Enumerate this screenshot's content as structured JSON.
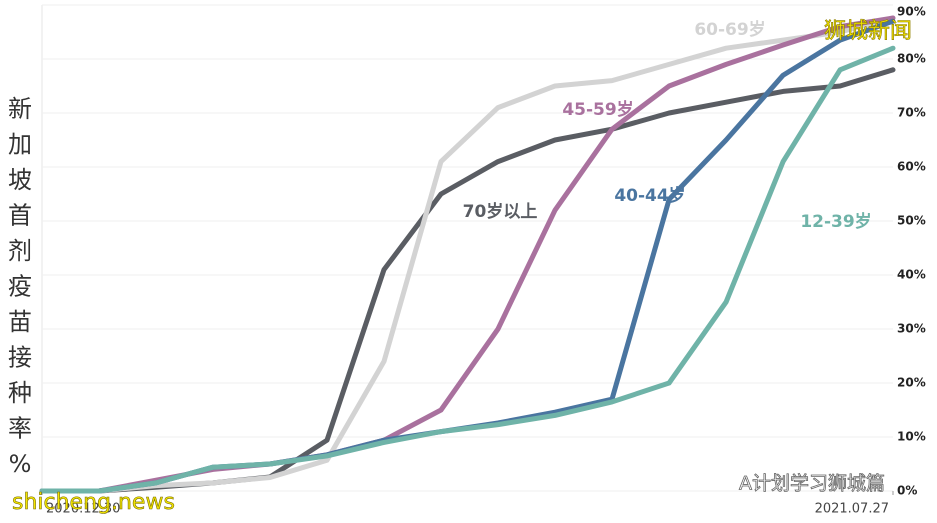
{
  "chart_data": {
    "type": "line",
    "y_label": "新加坡首剂疫苗接种率%",
    "x": [
      "2020.12.30",
      "2021.01.13",
      "2021.01.27",
      "2021.02.10",
      "2021.02.24",
      "2021.03.10",
      "2021.03.24",
      "2021.04.07",
      "2021.04.21",
      "2021.05.05",
      "2021.05.19",
      "2021.06.02",
      "2021.06.16",
      "2021.06.30",
      "2021.07.14",
      "2021.07.27"
    ],
    "xlim": [
      "2020.12.30",
      "2021.07.27"
    ],
    "xticks": [
      "2020.12.30",
      "2021.07.27"
    ],
    "ylim": [
      0,
      90
    ],
    "yticks": [
      {
        "value": 0,
        "label": "0%"
      },
      {
        "value": 10,
        "label": "10%"
      },
      {
        "value": 20,
        "label": "20%"
      },
      {
        "value": 30,
        "label": "30%"
      },
      {
        "value": 40,
        "label": "40%"
      },
      {
        "value": 50,
        "label": "50%"
      },
      {
        "value": 60,
        "label": "60%"
      },
      {
        "value": 70,
        "label": "70%"
      },
      {
        "value": 80,
        "label": "80%"
      },
      {
        "value": 90,
        "label": "90%"
      }
    ],
    "grid": true,
    "series": [
      {
        "name": "70岁以上",
        "color": "#5a5d63",
        "values": [
          0,
          0,
          0.7,
          1.5,
          2.6,
          9.4,
          41,
          55,
          61,
          65,
          67,
          70,
          72,
          74,
          75,
          78
        ]
      },
      {
        "name": "60-69岁",
        "color": "#d3d3d3",
        "values": [
          0,
          0,
          1,
          1.5,
          2.5,
          5.7,
          24,
          61,
          71,
          75,
          76,
          79,
          82,
          83.5,
          85,
          87.6
        ]
      },
      {
        "name": "45-59岁",
        "color": "#a9719e",
        "values": [
          0,
          0,
          2,
          4,
          5,
          6.7,
          9.4,
          15,
          30,
          52,
          67,
          75,
          79,
          82.6,
          86,
          87.6
        ]
      },
      {
        "name": "40-44岁",
        "color": "#4a75a0",
        "values": [
          0,
          0,
          1.5,
          4.4,
          5,
          6.7,
          9.4,
          11,
          12.6,
          14.6,
          17,
          54,
          65,
          77,
          83.5,
          87
        ]
      },
      {
        "name": "12-39岁",
        "color": "#6fb3a8",
        "values": [
          0,
          0,
          1.5,
          4.4,
          5,
          6.5,
          9,
          11,
          12.3,
          14,
          16.5,
          20,
          35,
          61,
          78,
          82
        ]
      }
    ],
    "watermarks": [
      "狮城新闻",
      "A计划学习狮城篇",
      "shicheng.news"
    ]
  }
}
